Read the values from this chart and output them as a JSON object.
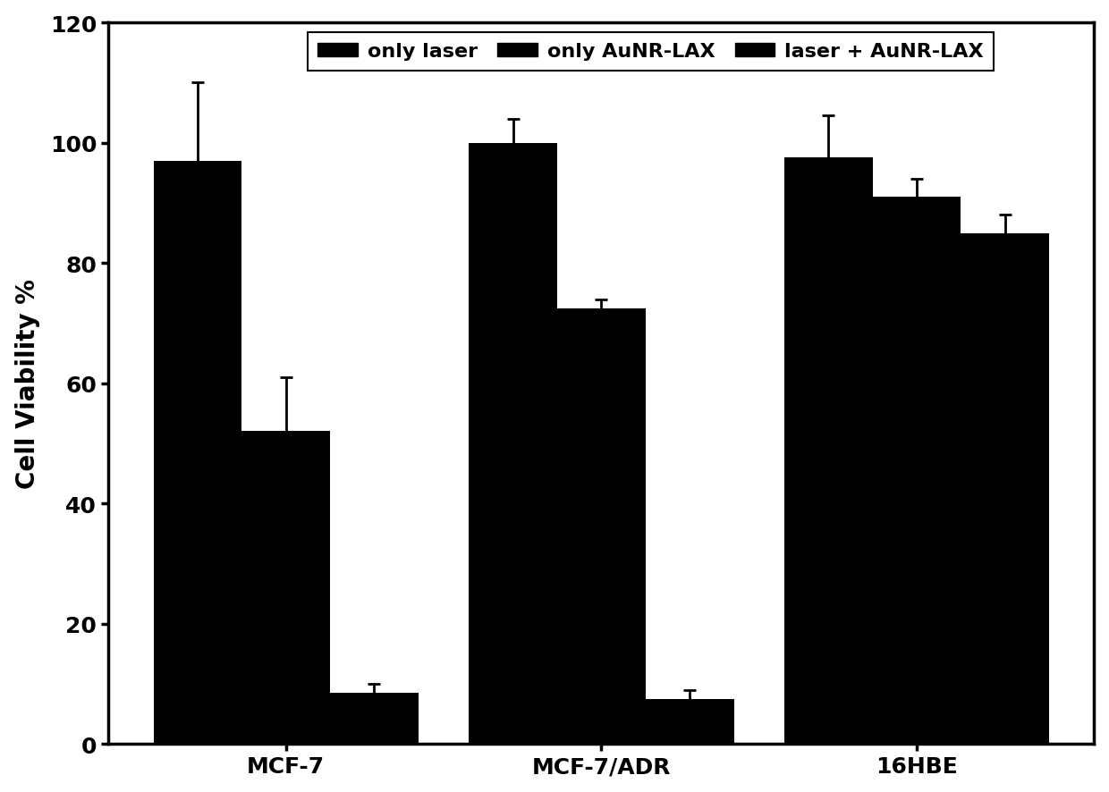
{
  "categories": [
    "MCF-7",
    "MCF-7/ADR",
    "16HBE"
  ],
  "series": [
    {
      "label": "only laser",
      "values": [
        97,
        100,
        97.5
      ],
      "errors": [
        13,
        4,
        7
      ],
      "color": "#000000"
    },
    {
      "label": "only AuNR-LAX",
      "values": [
        52,
        72.5,
        91
      ],
      "errors": [
        9,
        1.5,
        3
      ],
      "color": "#000000"
    },
    {
      "label": "laser + AuNR-LAX",
      "values": [
        8.5,
        7.5,
        85
      ],
      "errors": [
        1.5,
        1.5,
        3
      ],
      "color": "#000000"
    }
  ],
  "ylabel": "Cell Viability %",
  "ylim": [
    0,
    120
  ],
  "yticks": [
    0,
    20,
    40,
    60,
    80,
    100,
    120
  ],
  "bar_width": 0.28,
  "background_color": "#ffffff",
  "label_fontsize": 20,
  "tick_fontsize": 18,
  "legend_fontsize": 16
}
